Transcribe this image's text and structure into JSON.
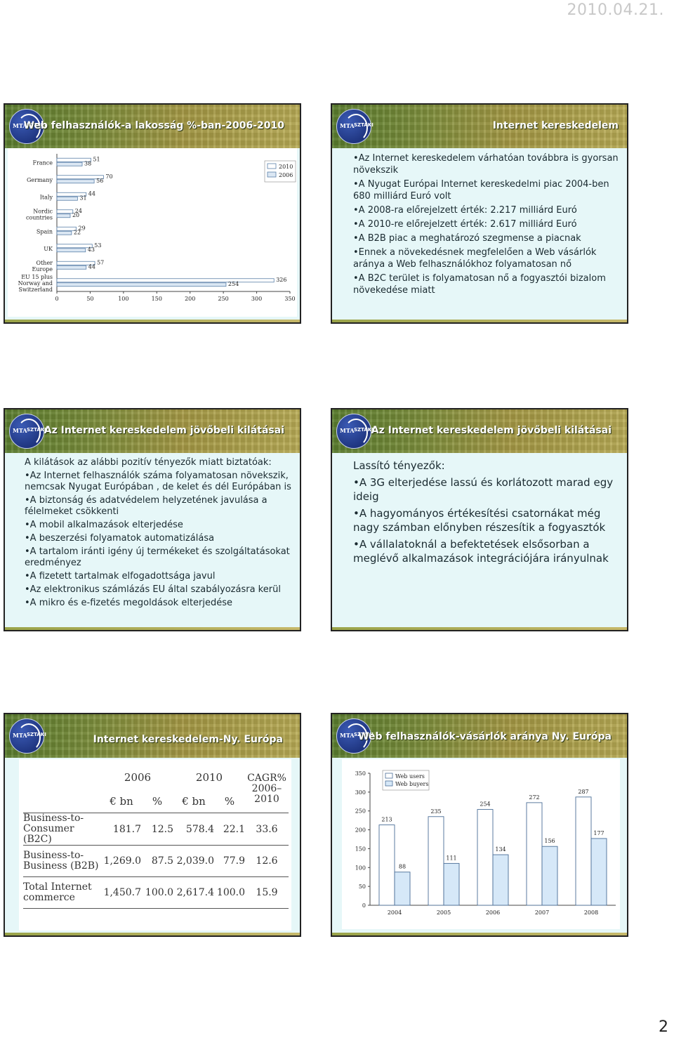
{
  "page": {
    "date": "2010.04.21.",
    "number": "2"
  },
  "logo": {
    "mta": "MTA",
    "sztaki": "SZTAKI"
  },
  "slides": {
    "s1": {
      "title": "Web felhasználók-a lakosság %-ban-2006-2010",
      "chart_data": {
        "type": "bar",
        "orientation": "horizontal",
        "categories": [
          "France",
          "Germany",
          "Italy",
          "Nordic countries",
          "Spain",
          "UK",
          "Other Europe",
          "EU 15 plus Norway and Switzerland"
        ],
        "series": [
          {
            "name": "2010",
            "values": [
              51,
              70,
              44,
              24,
              29,
              53,
              57,
              326
            ]
          },
          {
            "name": "2006",
            "values": [
              38,
              56,
              31,
              20,
              22,
              43,
              44,
              254
            ]
          }
        ],
        "xticks": [
          0,
          50,
          100,
          150,
          200,
          250,
          300,
          350
        ],
        "xlim": [
          0,
          350
        ],
        "legend": "top-right"
      }
    },
    "s2": {
      "title": "Internet kereskedelem",
      "bullets": [
        "•Az Internet kereskedelem várhatóan továbbra is gyorsan növekszik",
        "•A Nyugat Európai Internet kereskedelmi piac 2004-ben 680 milliárd Euró volt",
        "•A 2008-ra előrejelzett érték: 2.217 milliárd Euró",
        "•A 2010-re előrejelzett érték: 2.617 milliárd Euró",
        "•A B2B piac a meghatározó szegmense a piacnak",
        "•Ennek a növekedésnek megfelelően a Web vásárlók aránya a Web felhasználókhoz folyamatosan nő",
        "•A B2C terület is folyamatosan nő a fogyasztói bizalom növekedése miatt"
      ]
    },
    "s3": {
      "title": "Az Internet kereskedelem jövőbeli kilátásai",
      "bullets": [
        "A kilátások az alábbi pozitív tényezők miatt biztatóak:",
        "•Az Internet felhasználók száma folyamatosan növekszik, nemcsak Nyugat Európában , de kelet és dél Európában is",
        "•A biztonság és adatvédelem helyzetének javulása a félelmeket csökkenti",
        "•A mobil alkalmazások elterjedése",
        "•A beszerzési folyamatok automatizálása",
        "•A tartalom iránti igény új termékeket és szolgáltatásokat eredményez",
        "•A fizetett tartalmak elfogadottsága javul",
        "•Az elektronikus számlázás EU által szabályozásra kerül",
        "•A mikro és e-fizetés megoldások elterjedése"
      ]
    },
    "s4": {
      "title": "Az Internet kereskedelem jövőbeli kilátásai",
      "bullets": [
        "Lassító tényezők:",
        "•A 3G elterjedése lassú és korlátozott marad egy ideig",
        "•A hagyományos értékesítési csatornákat még nagy számban előnyben részesítik a fogyasztók",
        "•A vállalatoknál a befektetések elsősorban a meglévő alkalmazások integrációjára irányulnak"
      ]
    },
    "s5": {
      "title": "Internet kereskedelem-Ny. Európa",
      "table": {
        "header_years": [
          "2006",
          "2010",
          "CAGR% 2006–2010"
        ],
        "header_units": [
          "€ bn",
          "%",
          "€ bn",
          "%"
        ],
        "rows": [
          {
            "label": "Business-to-Consumer (B2C)",
            "values": [
              "181.7",
              "12.5",
              "578.4",
              "22.1",
              "33.6"
            ]
          },
          {
            "label": "Business-to-Business (B2B)",
            "values": [
              "1,269.0",
              "87.5",
              "2,039.0",
              "77.9",
              "12.6"
            ]
          },
          {
            "label": "Total Internet commerce",
            "values": [
              "1,450.7",
              "100.0",
              "2,617.4",
              "100.0",
              "15.9"
            ]
          }
        ]
      }
    },
    "s6": {
      "title": "Web felhasználók-vásárlók aránya Ny. Európa",
      "chart_data": {
        "type": "bar",
        "categories": [
          "2004",
          "2005",
          "2006",
          "2007",
          "2008"
        ],
        "series": [
          {
            "name": "Web users",
            "values": [
              213,
              235,
              254,
              272,
              287
            ]
          },
          {
            "name": "Web buyers",
            "values": [
              88,
              111,
              134,
              156,
              177
            ]
          }
        ],
        "yticks": [
          0,
          50,
          100,
          150,
          200,
          250,
          300,
          350
        ],
        "ylim": [
          0,
          350
        ],
        "legend": "top-left",
        "colors": {
          "Web users": "#ffffff",
          "Web buyers": "#d6e8f8"
        }
      }
    }
  }
}
